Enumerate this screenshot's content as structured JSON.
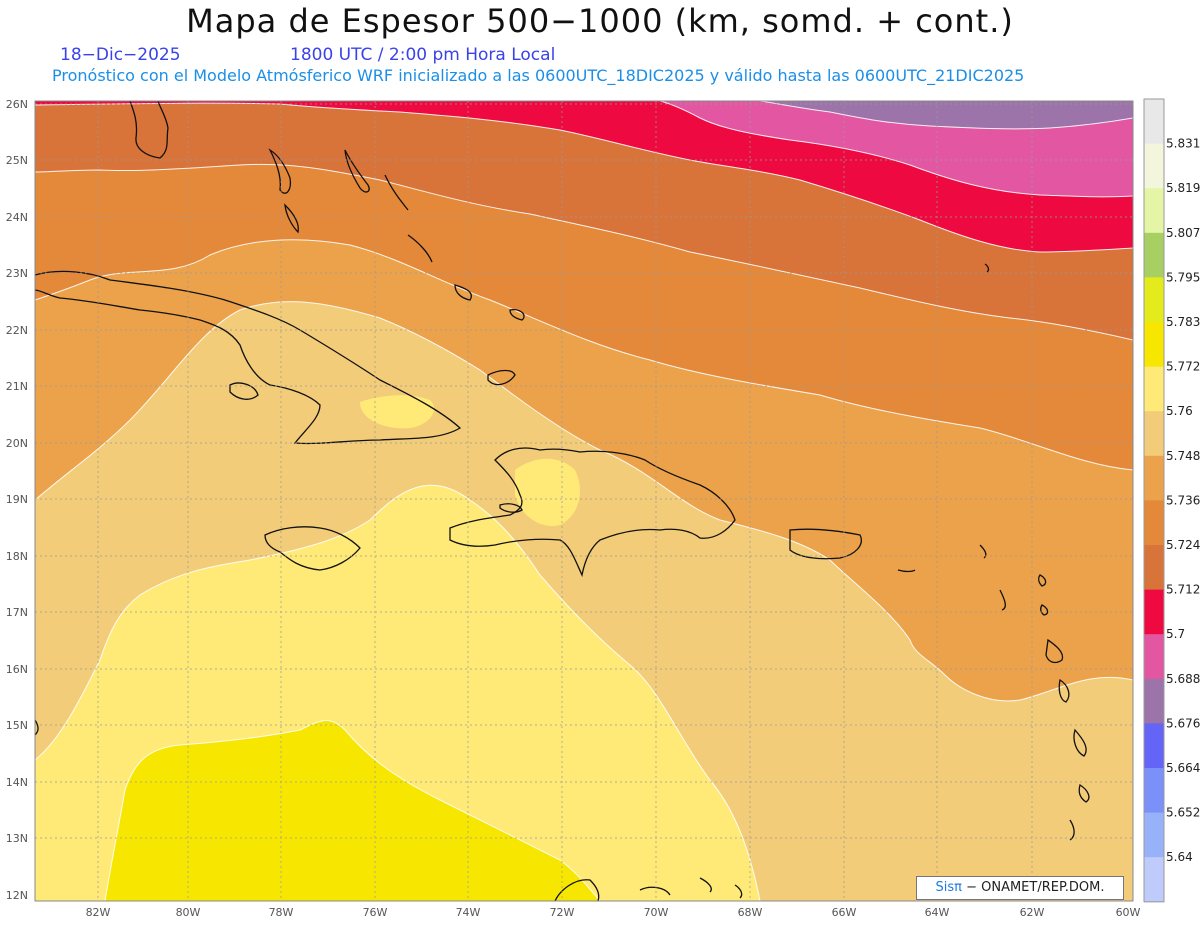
{
  "title": "Mapa de Espesor 500−1000 (km, somd. + cont.)",
  "date": "18−Dic−2025",
  "utc_time": "1800 UTC / 2:00 pm Hora Local",
  "model_info": "Pronóstico con el Modelo Atmósferico WRF inicializado a las 0600UTC_18DIC2025 y válido hasta las  0600UTC_21DIC2025",
  "credit": {
    "logo": "Sisπ",
    "text": "− ONAMET/REP.DOM."
  },
  "map": {
    "lat_labels": [
      "26N",
      "25N",
      "24N",
      "23N",
      "22N",
      "21N",
      "20N",
      "19N",
      "18N",
      "17N",
      "16N",
      "15N",
      "14N",
      "13N",
      "12N"
    ],
    "lon_labels": [
      "82W",
      "80W",
      "78W",
      "76W",
      "74W",
      "72W",
      "70W",
      "68W",
      "66W",
      "64W",
      "62W",
      "60W"
    ]
  },
  "colorbar": {
    "labels": [
      "5.831",
      "5.819",
      "5.807",
      "5.795",
      "5.783",
      "5.772",
      "5.76",
      "5.748",
      "5.736",
      "5.724",
      "5.712",
      "5.7",
      "5.688",
      "5.676",
      "5.664",
      "5.652",
      "5.64"
    ],
    "colors": [
      "#e8e8e8",
      "#f3f5dc",
      "#e4f5a6",
      "#a8cf62",
      "#e3ec1a",
      "#f6e600",
      "#ffea78",
      "#f2cc78",
      "#eba24a",
      "#e4883a",
      "#d8743a",
      "#ee0a40",
      "#e356a2",
      "#9c74aa",
      "#6464f6",
      "#7c90fa",
      "#98b2fa",
      "#bfcbfa"
    ]
  },
  "colors": {
    "band_5712": "#d8743a",
    "band_5724": "#e4883a",
    "band_5736": "#eba24a",
    "band_5748": "#f2cc78",
    "band_5760": "#ffea78",
    "band_5772": "#f6e600",
    "band_5700": "#ee0a40",
    "band_5688": "#e356a2",
    "band_5676": "#9c74aa"
  }
}
